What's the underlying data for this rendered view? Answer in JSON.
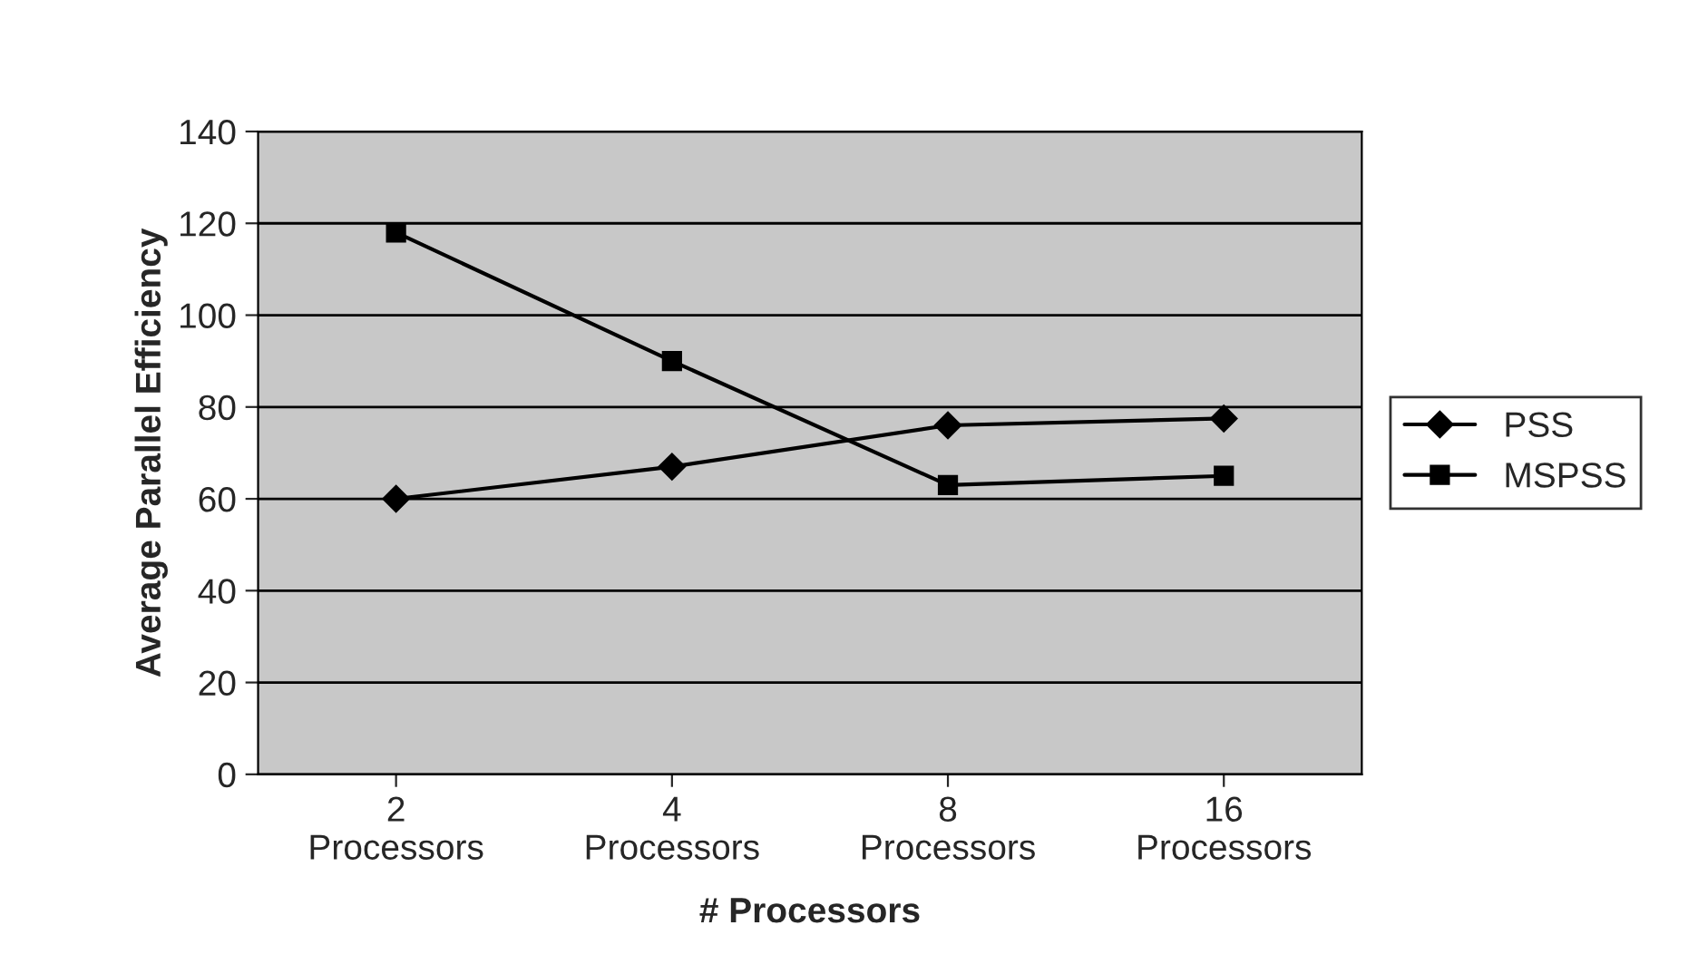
{
  "chart_data": {
    "type": "line",
    "xlabel": "# Processors",
    "ylabel": "Average Parallel Efficiency",
    "categories": [
      "2\nProcessors",
      "4\nProcessors",
      "8\nProcessors",
      "16\nProcessors"
    ],
    "series": [
      {
        "name": "PSS",
        "color": "#000000",
        "values": [
          60,
          67,
          76,
          77.5
        ],
        "marker": "diamond"
      },
      {
        "name": "MSPSS",
        "color": "#000000",
        "values": [
          118,
          90,
          63,
          65
        ],
        "marker": "square"
      }
    ],
    "ylim": [
      0,
      140
    ],
    "yticks": [
      0,
      20,
      40,
      60,
      80,
      100,
      120,
      140
    ],
    "grid": "y",
    "legend": "right",
    "line_style": "solid"
  }
}
